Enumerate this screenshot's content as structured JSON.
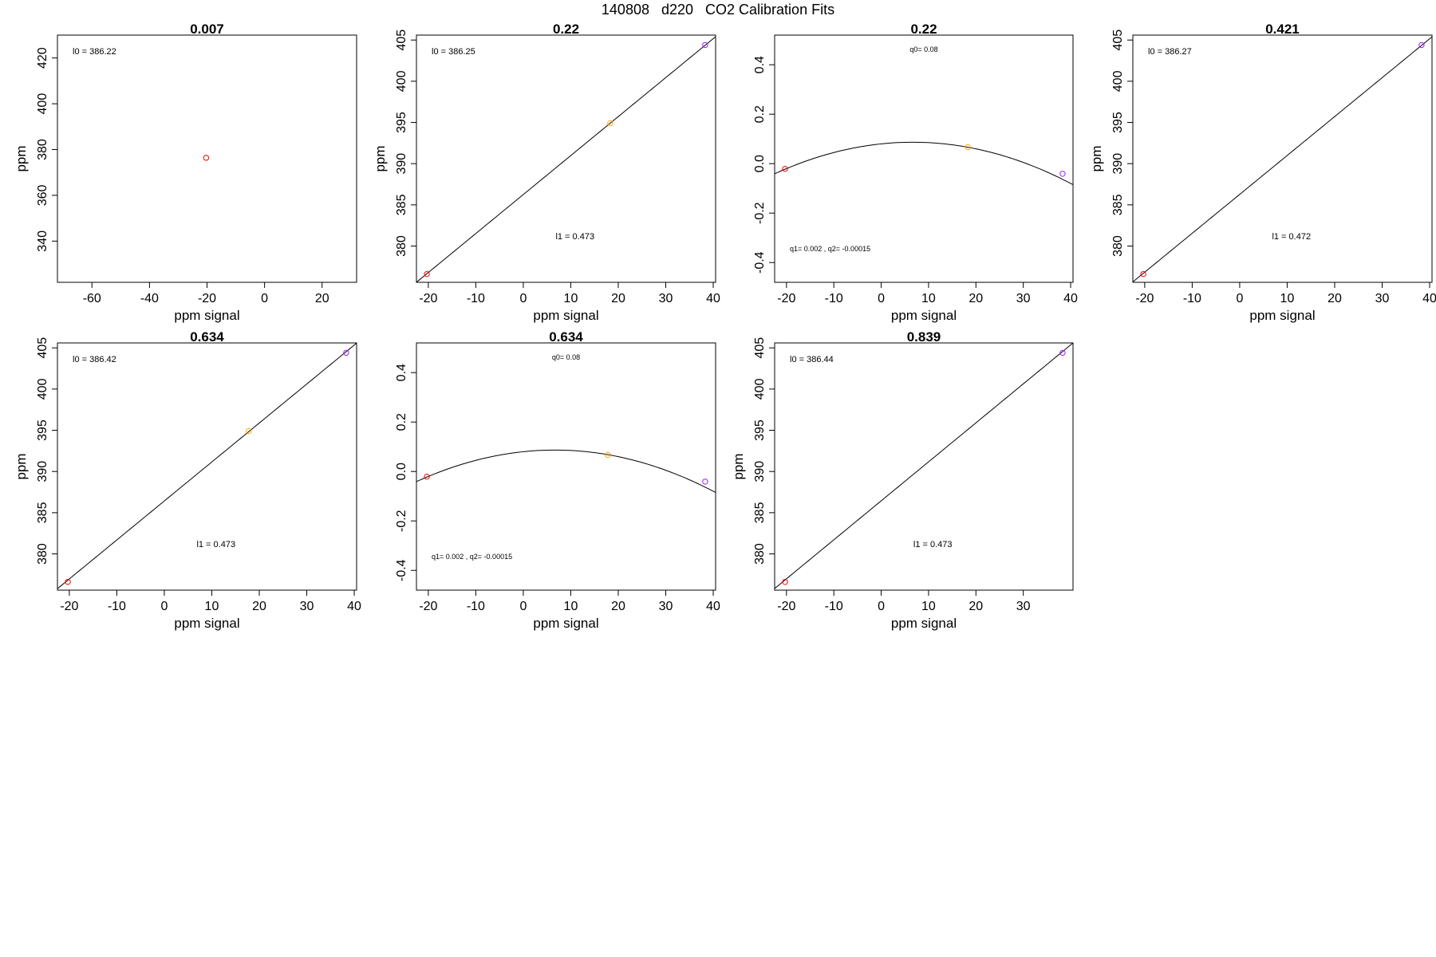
{
  "figure": {
    "title": "140808   d220   CO2 Calibration Fits"
  },
  "chart_data": [
    {
      "type": "scatter",
      "title": "0.007",
      "xlabel": "ppm signal",
      "ylabel": "ppm",
      "xlim": [
        -72,
        32
      ],
      "ylim": [
        322,
        430
      ],
      "xticks": [
        -60,
        -40,
        -20,
        0,
        20
      ],
      "yticks": [
        340,
        360,
        380,
        400,
        420
      ],
      "points": [
        {
          "x": -20.3,
          "y": 376.4,
          "color": "#ff0000"
        }
      ],
      "fit": null,
      "annotations": [
        {
          "text": "l0 =  386.22"
        }
      ]
    },
    {
      "type": "scatter",
      "title": "0.22",
      "xlabel": "ppm signal",
      "ylabel": "ppm",
      "xlim": [
        -22.5,
        40.5
      ],
      "ylim": [
        375.6,
        405.6
      ],
      "xticks": [
        -20,
        -10,
        0,
        10,
        20,
        30,
        40
      ],
      "yticks": [
        380,
        385,
        390,
        395,
        400,
        405
      ],
      "points": [
        {
          "x": -20.3,
          "y": 376.6,
          "color": "#ff0000"
        },
        {
          "x": 18.3,
          "y": 394.9,
          "color": "#ffa500"
        },
        {
          "x": 38.3,
          "y": 404.4,
          "color": "#a020f0"
        }
      ],
      "fit": {
        "kind": "linear",
        "intercept": 386.25,
        "slope": 0.473
      },
      "annotations": [
        {
          "text": "l0 =  386.25"
        },
        {
          "text": "l1 =  0.473"
        }
      ]
    },
    {
      "type": "scatter",
      "title": "0.22",
      "xlabel": "ppm signal",
      "ylabel": "",
      "xlim": [
        -22.5,
        40.5
      ],
      "ylim": [
        -0.48,
        0.52
      ],
      "xticks": [
        -20,
        -10,
        0,
        10,
        20,
        30,
        40
      ],
      "yticks": [
        -0.4,
        -0.2,
        0.0,
        0.2,
        0.4
      ],
      "points": [
        {
          "x": -20.3,
          "y": -0.021,
          "color": "#ff0000"
        },
        {
          "x": 18.3,
          "y": 0.067,
          "color": "#ffa500"
        },
        {
          "x": 38.3,
          "y": -0.041,
          "color": "#a020f0"
        }
      ],
      "fit": {
        "kind": "quadratic",
        "q0": 0.08,
        "q1": 0.002,
        "q2": -0.00015
      },
      "annotations": [
        {
          "text": "q0= 0.08"
        },
        {
          "text": "q1= 0.002 , q2= -0.00015"
        }
      ]
    },
    {
      "type": "scatter",
      "title": "0.421",
      "xlabel": "ppm signal",
      "ylabel": "ppm",
      "xlim": [
        -22.5,
        40.5
      ],
      "ylim": [
        375.6,
        405.6
      ],
      "xticks": [
        -20,
        -10,
        0,
        10,
        20,
        30,
        40
      ],
      "yticks": [
        380,
        385,
        390,
        395,
        400,
        405
      ],
      "points": [
        {
          "x": -20.3,
          "y": 376.6,
          "color": "#ff0000"
        },
        {
          "x": 38.3,
          "y": 404.4,
          "color": "#a020f0"
        }
      ],
      "fit": {
        "kind": "linear",
        "intercept": 386.27,
        "slope": 0.472
      },
      "annotations": [
        {
          "text": "l0 =  386.27"
        },
        {
          "text": "l1 =  0.472"
        }
      ]
    },
    {
      "type": "scatter",
      "title": "0.634",
      "xlabel": "ppm signal",
      "ylabel": "ppm",
      "xlim": [
        -22.5,
        40.5
      ],
      "ylim": [
        375.6,
        405.6
      ],
      "xticks": [
        -20,
        -10,
        0,
        10,
        20,
        30,
        40
      ],
      "yticks": [
        380,
        385,
        390,
        395,
        400,
        405
      ],
      "points": [
        {
          "x": -20.3,
          "y": 376.6,
          "color": "#ff0000"
        },
        {
          "x": 17.8,
          "y": 394.9,
          "color": "#ffa500"
        },
        {
          "x": 38.3,
          "y": 404.4,
          "color": "#a020f0"
        }
      ],
      "fit": {
        "kind": "linear",
        "intercept": 386.42,
        "slope": 0.473
      },
      "annotations": [
        {
          "text": "l0 =  386.42"
        },
        {
          "text": "l1 =  0.473"
        }
      ]
    },
    {
      "type": "scatter",
      "title": "0.634",
      "xlabel": "ppm signal",
      "ylabel": "",
      "xlim": [
        -22.5,
        40.5
      ],
      "ylim": [
        -0.48,
        0.52
      ],
      "xticks": [
        -20,
        -10,
        0,
        10,
        20,
        30,
        40
      ],
      "yticks": [
        -0.4,
        -0.2,
        0.0,
        0.2,
        0.4
      ],
      "points": [
        {
          "x": -20.3,
          "y": -0.021,
          "color": "#ff0000"
        },
        {
          "x": 17.8,
          "y": 0.067,
          "color": "#ffa500"
        },
        {
          "x": 38.3,
          "y": -0.041,
          "color": "#a020f0"
        }
      ],
      "fit": {
        "kind": "quadratic",
        "q0": 0.08,
        "q1": 0.002,
        "q2": -0.00015
      },
      "annotations": [
        {
          "text": "q0= 0.08"
        },
        {
          "text": "q1= 0.002 , q2= -0.00015"
        }
      ]
    },
    {
      "type": "scatter",
      "title": "0.839",
      "xlabel": "ppm signal",
      "ylabel": "ppm",
      "xlim": [
        -22.5,
        40.5
      ],
      "ylim": [
        375.6,
        405.6
      ],
      "xticks": [
        -20,
        -10,
        0,
        10,
        20,
        30
      ],
      "yticks": [
        380,
        385,
        390,
        395,
        400,
        405
      ],
      "points": [
        {
          "x": -20.3,
          "y": 376.6,
          "color": "#ff0000"
        },
        {
          "x": 38.3,
          "y": 404.4,
          "color": "#a020f0"
        }
      ],
      "fit": {
        "kind": "linear",
        "intercept": 386.44,
        "slope": 0.473
      },
      "annotations": [
        {
          "text": "l0 =  386.44"
        },
        {
          "text": "l1 =  0.473"
        }
      ]
    }
  ]
}
